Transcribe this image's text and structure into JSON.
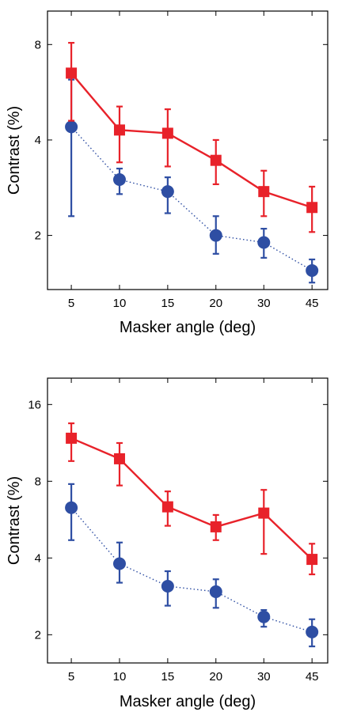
{
  "chart_data": [
    {
      "type": "line",
      "xlabel": "Masker angle (deg)",
      "ylabel": "Contrast (%)",
      "y_scale": "log2",
      "ylim": [
        1.35,
        10.2
      ],
      "categories": [
        "5",
        "10",
        "15",
        "20",
        "30",
        "45"
      ],
      "y_ticks": [
        2,
        4,
        8
      ],
      "grid": false,
      "series": [
        {
          "color": "#e8222a",
          "marker": "square",
          "line": "solid",
          "values": [
            6.5,
            4.3,
            4.2,
            3.45,
            2.75,
            2.45
          ],
          "err_low": [
            4.6,
            3.4,
            3.3,
            2.9,
            2.3,
            2.05
          ],
          "err_high": [
            8.1,
            5.1,
            5.0,
            4.0,
            3.2,
            2.85
          ]
        },
        {
          "color": "#2e4ea3",
          "marker": "circle",
          "line": "dotted",
          "values": [
            4.4,
            3.0,
            2.75,
            2.0,
            1.9,
            1.55
          ],
          "err_low": [
            2.3,
            2.7,
            2.35,
            1.75,
            1.7,
            1.42
          ],
          "err_high": [
            6.2,
            3.25,
            3.05,
            2.3,
            2.1,
            1.68
          ]
        }
      ]
    },
    {
      "type": "line",
      "xlabel": "Masker angle (deg)",
      "ylabel": "Contrast (%)",
      "y_scale": "log2",
      "ylim": [
        1.55,
        20.3
      ],
      "categories": [
        "5",
        "10",
        "15",
        "20",
        "30",
        "45"
      ],
      "y_ticks": [
        2,
        4,
        8,
        16
      ],
      "grid": false,
      "series": [
        {
          "color": "#e8222a",
          "marker": "square",
          "line": "solid",
          "values": [
            11.8,
            9.8,
            6.35,
            5.3,
            6.0,
            3.95
          ],
          "err_low": [
            9.6,
            7.7,
            5.35,
            4.7,
            4.15,
            3.45
          ],
          "err_high": [
            13.5,
            11.3,
            7.3,
            5.9,
            7.4,
            4.55
          ]
        },
        {
          "color": "#2e4ea3",
          "marker": "circle",
          "line": "dotted",
          "values": [
            6.3,
            3.8,
            3.1,
            2.95,
            2.35,
            2.05
          ],
          "err_low": [
            4.7,
            3.2,
            2.6,
            2.55,
            2.15,
            1.8
          ],
          "err_high": [
            7.8,
            4.6,
            3.55,
            3.3,
            2.5,
            2.3
          ]
        }
      ]
    }
  ]
}
